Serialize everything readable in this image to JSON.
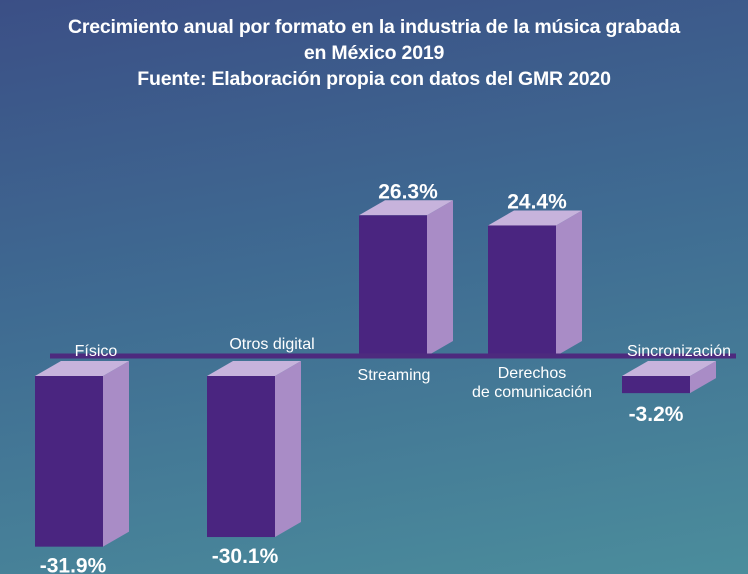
{
  "chart_data": {
    "type": "bar",
    "title": "Crecimiento anual por formato en la industria de la música grabada en México 2019",
    "subtitle": "Fuente: Elaboración propia con datos del GMR 2020",
    "categories": [
      "Físico",
      "Otros digital",
      "Streaming",
      "Derechos de comunicación",
      "Sincronización"
    ],
    "values": [
      -31.9,
      -30.1,
      26.3,
      24.4,
      -3.2
    ],
    "value_labels": [
      "-31.9%",
      "-30.1%",
      "26.3%",
      "24.4%",
      "-3.2%"
    ],
    "ylim": [
      -35,
      30
    ],
    "xlabel": "",
    "ylabel": "",
    "grid": false,
    "colors": {
      "bar_front": "#4a2580",
      "bar_side": "#a98cc6",
      "bar_top": "#c7b3dc",
      "axis": "#4d2a7e"
    }
  },
  "title_lines": [
    "Crecimiento anual por formato en la industria de la música grabada",
    "en México 2019",
    "Fuente: Elaboración propia con datos del GMR 2020"
  ]
}
